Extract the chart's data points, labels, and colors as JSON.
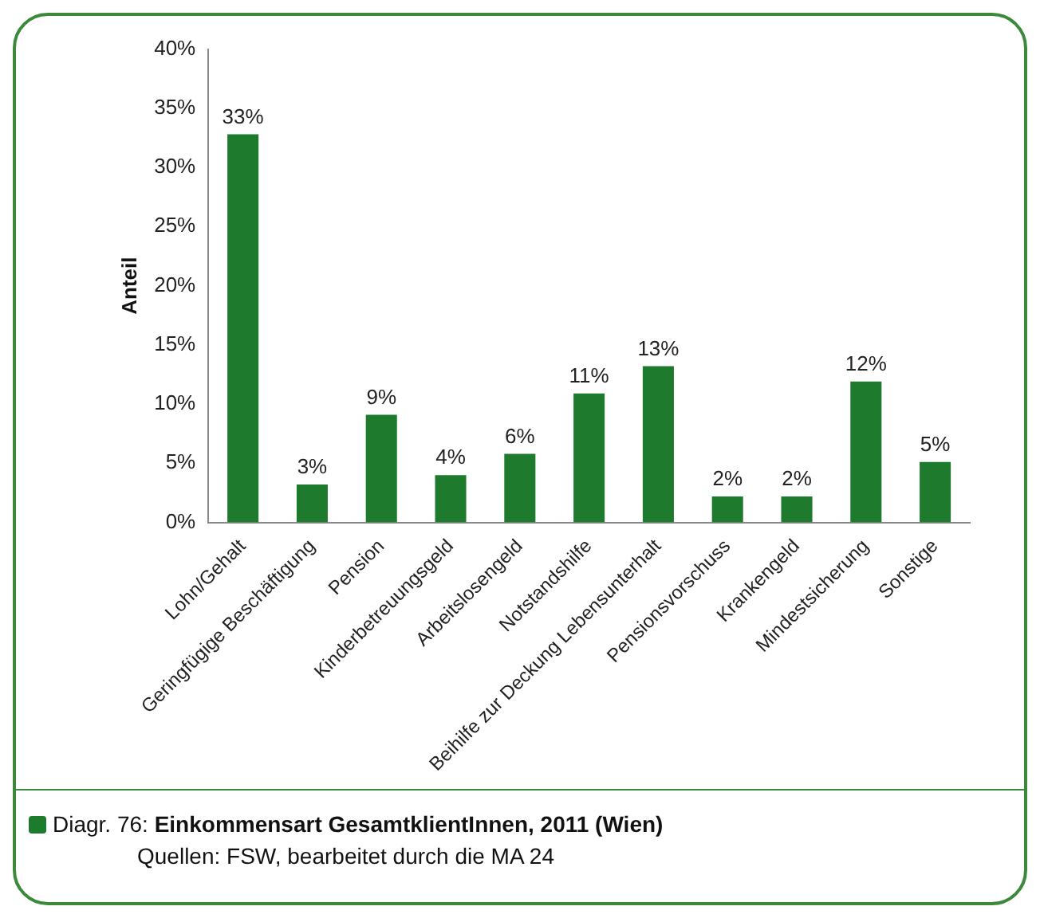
{
  "chart_data": {
    "type": "bar",
    "title": "Diagr. 76: Einkommensart GesamtklientInnen, 2011 (Wien)",
    "ylabel": "Anteil",
    "annotations": [
      "Quellen: FSW, bearbeitet durch die MA 24"
    ],
    "categories": [
      "Lohn/Gehalt",
      "Geringfügige Beschäftigung",
      "Pension",
      "Kinderbetreuungsgeld",
      "Arbeitslosengeld",
      "Notstandshilfe",
      "Beihilfe zur Deckung Lebensunterhalt",
      "Pensionsvorschuss",
      "Krankengeld",
      "Mindestsicherung",
      "Sonstige"
    ],
    "values": [
      32.8,
      3.2,
      9.1,
      4,
      5.8,
      10.9,
      13.2,
      2.2,
      2.2,
      11.9,
      5.1
    ],
    "value_labels": [
      "33%",
      "3%",
      "9%",
      "4%",
      "6%",
      "11%",
      "13%",
      "2%",
      "2%",
      "12%",
      "5%"
    ],
    "color": "#1e7b2e",
    "ylim": [
      0,
      40
    ],
    "yticks": [
      {
        "value": 0,
        "label": "0%"
      },
      {
        "value": 5,
        "label": "5%"
      },
      {
        "value": 10,
        "label": "10%"
      },
      {
        "value": 15,
        "label": "15%"
      },
      {
        "value": 20,
        "label": "20%"
      },
      {
        "value": 25,
        "label": "25%"
      },
      {
        "value": 30,
        "label": "30%"
      },
      {
        "value": 35,
        "label": "35%"
      },
      {
        "value": 40,
        "label": "40%"
      }
    ],
    "grid": false,
    "legend": false
  }
}
